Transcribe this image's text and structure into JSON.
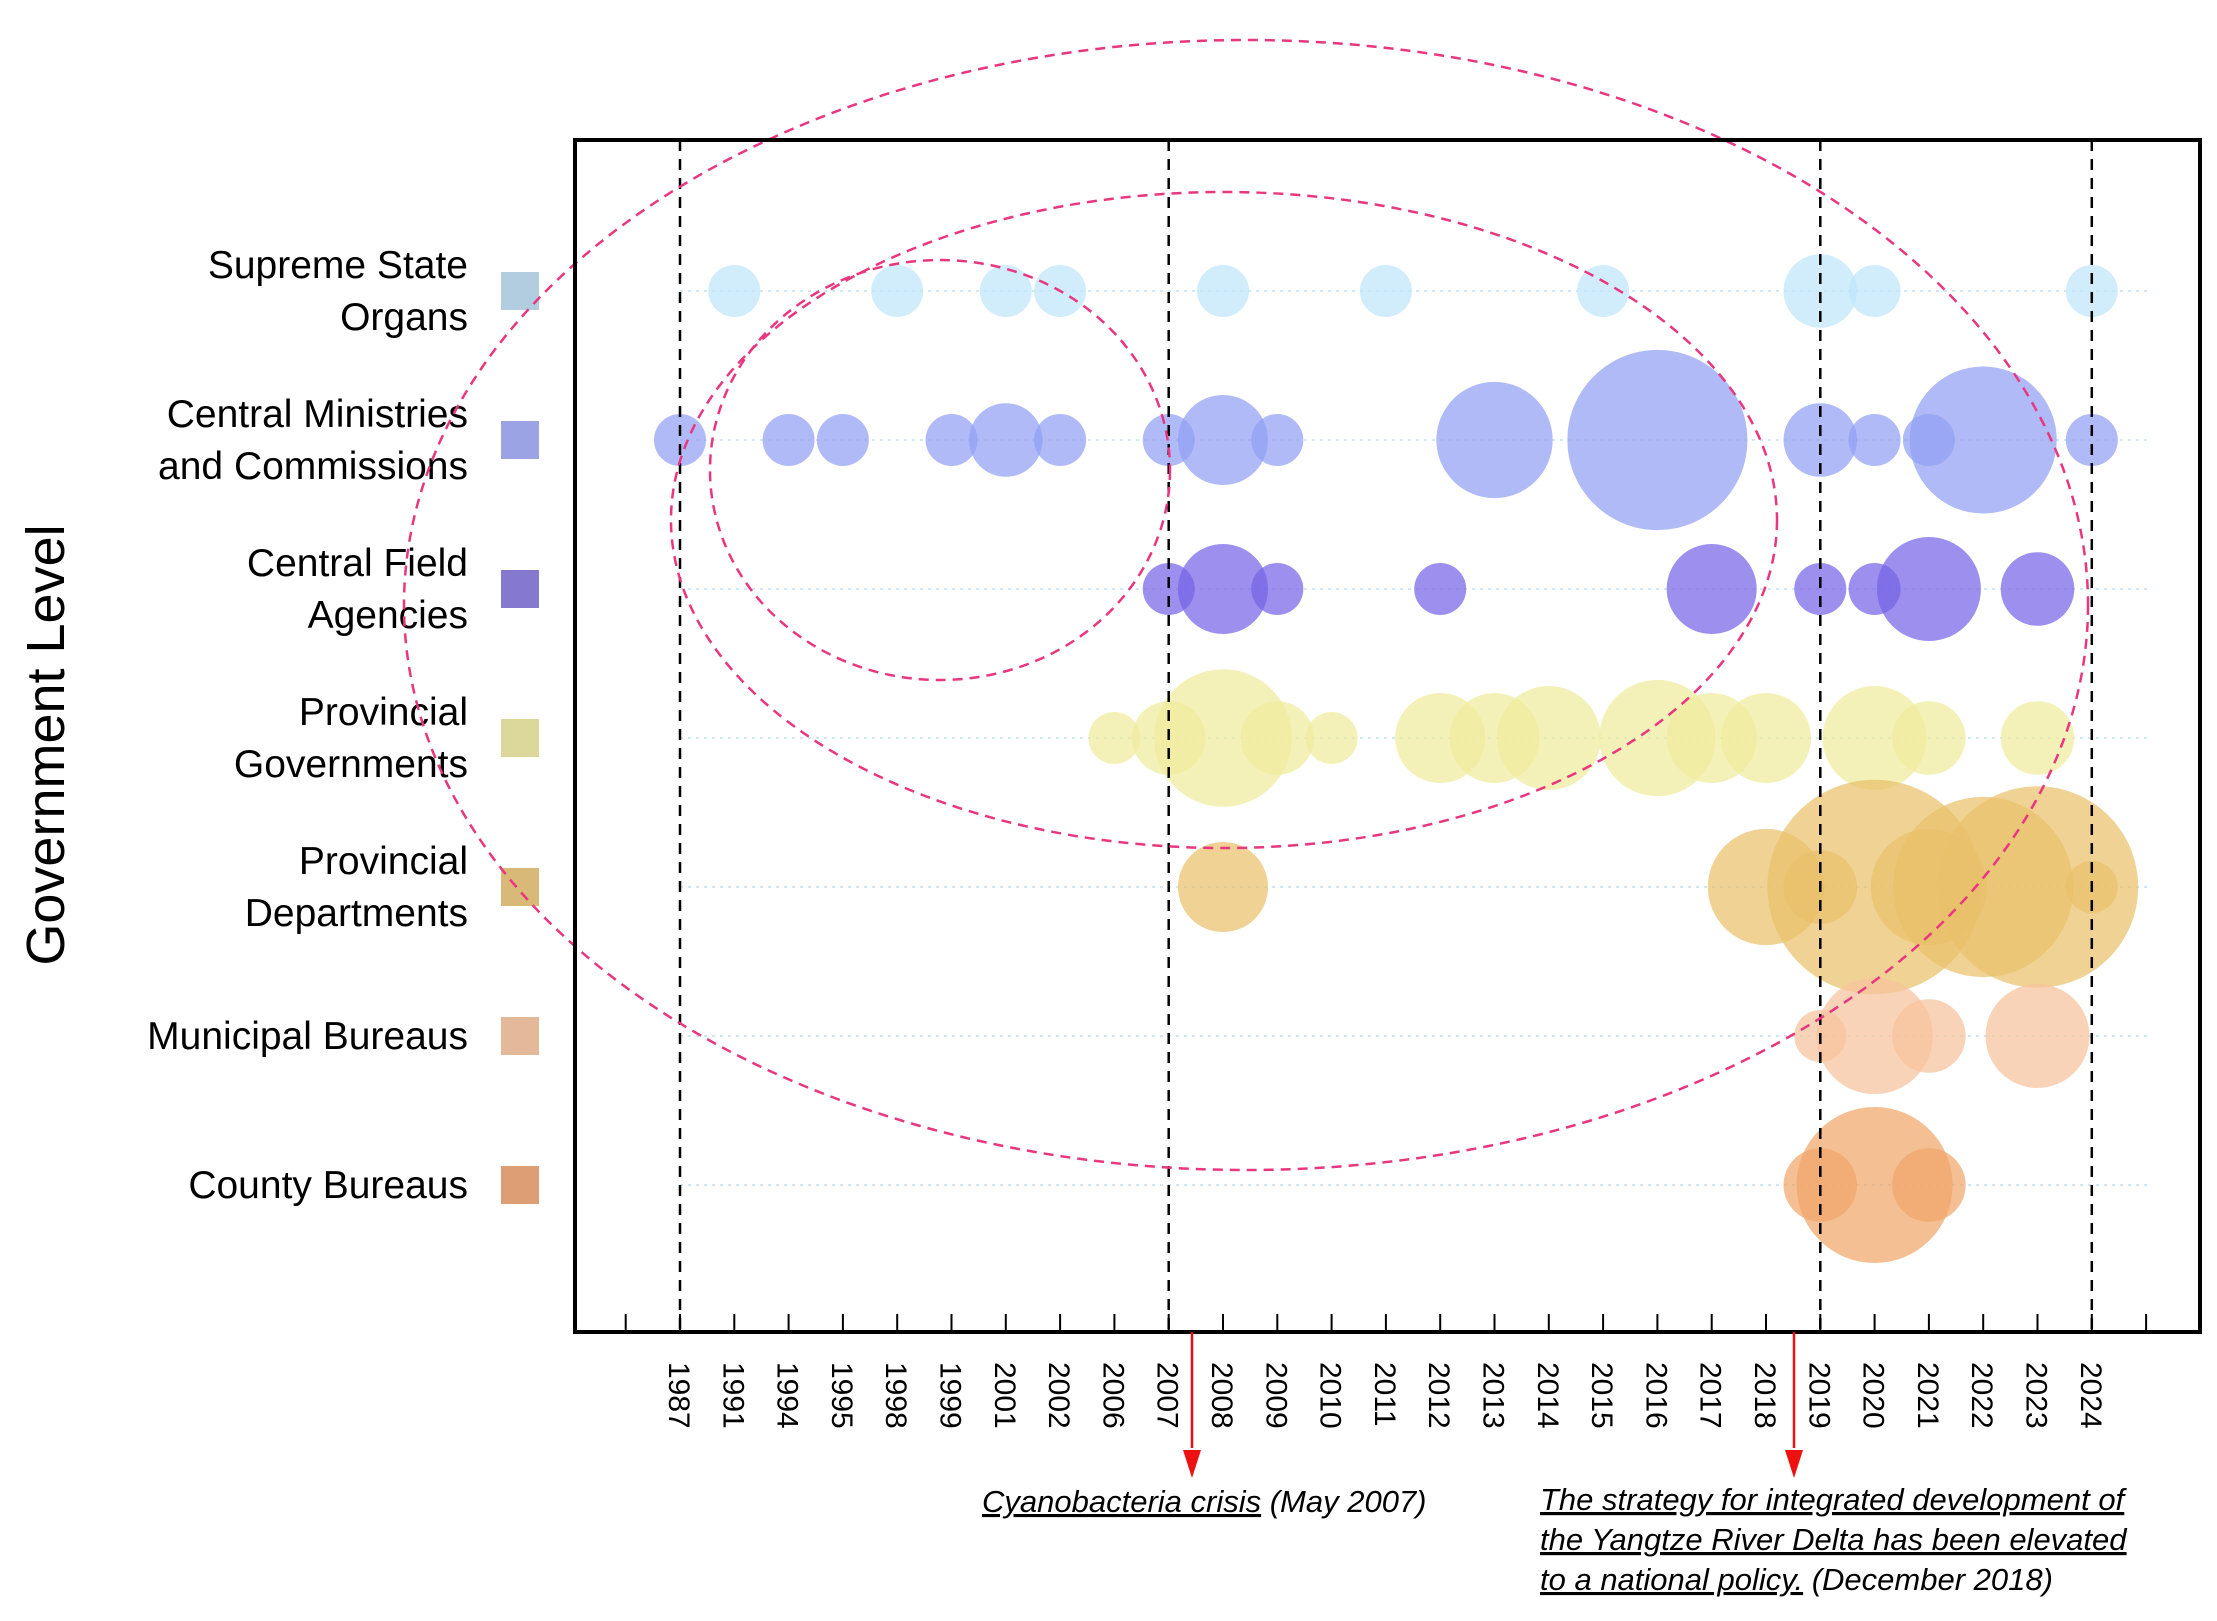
{
  "chart_data": {
    "type": "bubble-timeline",
    "ylabel": "Government Level",
    "categories": [
      {
        "label": [
          "Supreme State",
          "Organs"
        ],
        "color": "#b3cde0"
      },
      {
        "label": [
          "Central Ministries",
          "and Commissions"
        ],
        "color": "#9ba3e4"
      },
      {
        "label": [
          "Central Field",
          "Agencies"
        ],
        "color": "#8479cf"
      },
      {
        "label": [
          "Provincial",
          "Governments"
        ],
        "color": "#dcd89a"
      },
      {
        "label": [
          "Provincial",
          "Departments"
        ],
        "color": "#d9b978"
      },
      {
        "label": [
          "Municipal Bureaus"
        ],
        "color": "#e3b99a"
      },
      {
        "label": [
          "County Bureaus"
        ],
        "color": "#de9e74"
      }
    ],
    "bubble_colors": [
      "#bfe6fb",
      "#919ff2",
      "#7664e6",
      "#f0eb9c",
      "#e9c16b",
      "#f6c29c",
      "#f0a66a"
    ],
    "years": [
      "1987",
      "1991",
      "1994",
      "1995",
      "1998",
      "1999",
      "2001",
      "2002",
      "2006",
      "2007",
      "2008",
      "2009",
      "2010",
      "2011",
      "2012",
      "2013",
      "2014",
      "2015",
      "2016",
      "2017",
      "2018",
      "2019",
      "2020",
      "2021",
      "2022",
      "2023",
      "2024"
    ],
    "bubbles": [
      {
        "level": 0,
        "year": "1991",
        "size": 1
      },
      {
        "level": 0,
        "year": "1998",
        "size": 1
      },
      {
        "level": 0,
        "year": "2001",
        "size": 1
      },
      {
        "level": 0,
        "year": "2002",
        "size": 1
      },
      {
        "level": 0,
        "year": "2008",
        "size": 1
      },
      {
        "level": 0,
        "year": "2011",
        "size": 1
      },
      {
        "level": 0,
        "year": "2015",
        "size": 1
      },
      {
        "level": 0,
        "year": "2019",
        "size": 2
      },
      {
        "level": 0,
        "year": "2020",
        "size": 1
      },
      {
        "level": 0,
        "year": "2024",
        "size": 1
      },
      {
        "level": 1,
        "year": "1987",
        "size": 1
      },
      {
        "level": 1,
        "year": "1994",
        "size": 1
      },
      {
        "level": 1,
        "year": "1995",
        "size": 1
      },
      {
        "level": 1,
        "year": "1999",
        "size": 1
      },
      {
        "level": 1,
        "year": "2001",
        "size": 2
      },
      {
        "level": 1,
        "year": "2002",
        "size": 1
      },
      {
        "level": 1,
        "year": "2007",
        "size": 1
      },
      {
        "level": 1,
        "year": "2008",
        "size": 3
      },
      {
        "level": 1,
        "year": "2009",
        "size": 1
      },
      {
        "level": 1,
        "year": "2013",
        "size": 5
      },
      {
        "level": 1,
        "year": "2016",
        "size": 12
      },
      {
        "level": 1,
        "year": "2019",
        "size": 2
      },
      {
        "level": 1,
        "year": "2020",
        "size": 1
      },
      {
        "level": 1,
        "year": "2021",
        "size": 1
      },
      {
        "level": 1,
        "year": "2022",
        "size": 8
      },
      {
        "level": 1,
        "year": "2024",
        "size": 1
      },
      {
        "level": 2,
        "year": "2007",
        "size": 1
      },
      {
        "level": 2,
        "year": "2008",
        "size": 3
      },
      {
        "level": 2,
        "year": "2009",
        "size": 1
      },
      {
        "level": 2,
        "year": "2012",
        "size": 1
      },
      {
        "level": 2,
        "year": "2017",
        "size": 3
      },
      {
        "level": 2,
        "year": "2019",
        "size": 1
      },
      {
        "level": 2,
        "year": "2020",
        "size": 1
      },
      {
        "level": 2,
        "year": "2021",
        "size": 4
      },
      {
        "level": 2,
        "year": "2023",
        "size": 2
      },
      {
        "level": 3,
        "year": "2006",
        "size": 1
      },
      {
        "level": 3,
        "year": "2007",
        "size": 2
      },
      {
        "level": 3,
        "year": "2008",
        "size": 7
      },
      {
        "level": 3,
        "year": "2009",
        "size": 2
      },
      {
        "level": 3,
        "year": "2010",
        "size": 1
      },
      {
        "level": 3,
        "year": "2012",
        "size": 3
      },
      {
        "level": 3,
        "year": "2013",
        "size": 3
      },
      {
        "level": 3,
        "year": "2014",
        "size": 4
      },
      {
        "level": 3,
        "year": "2016",
        "size": 5
      },
      {
        "level": 3,
        "year": "2017",
        "size": 3
      },
      {
        "level": 3,
        "year": "2018",
        "size": 3
      },
      {
        "level": 3,
        "year": "2020",
        "size": 4
      },
      {
        "level": 3,
        "year": "2021",
        "size": 2
      },
      {
        "level": 3,
        "year": "2023",
        "size": 2
      },
      {
        "level": 4,
        "year": "2008",
        "size": 3
      },
      {
        "level": 4,
        "year": "2018",
        "size": 5
      },
      {
        "level": 4,
        "year": "2019",
        "size": 2
      },
      {
        "level": 4,
        "year": "2020",
        "size": 17
      },
      {
        "level": 4,
        "year": "2021",
        "size": 5
      },
      {
        "level": 4,
        "year": "2022",
        "size": 12
      },
      {
        "level": 4,
        "year": "2023",
        "size": 15
      },
      {
        "level": 4,
        "year": "2024",
        "size": 1
      },
      {
        "level": 5,
        "year": "2019",
        "size": 1
      },
      {
        "level": 5,
        "year": "2020",
        "size": 5
      },
      {
        "level": 5,
        "year": "2021",
        "size": 2
      },
      {
        "level": 5,
        "year": "2023",
        "size": 4
      },
      {
        "level": 6,
        "year": "2019",
        "size": 2
      },
      {
        "level": 6,
        "year": "2020",
        "size": 9
      },
      {
        "level": 6,
        "year": "2021",
        "size": 2
      }
    ],
    "markers": [
      "1987",
      "2007",
      "2019",
      "2024"
    ],
    "events": [
      {
        "year": "2008",
        "text_underlined": "Cyanobacteria crisis",
        "text_plain": " (May 2007)"
      },
      {
        "year": "2019",
        "lines": [
          "The strategy for integrated development of",
          "the Yangtze River Delta has been elevated",
          "to a national policy."
        ],
        "text_plain": " (December 2018)"
      }
    ],
    "highlight_color": "#e8367f",
    "event_arrow_color": "#ee1111"
  }
}
